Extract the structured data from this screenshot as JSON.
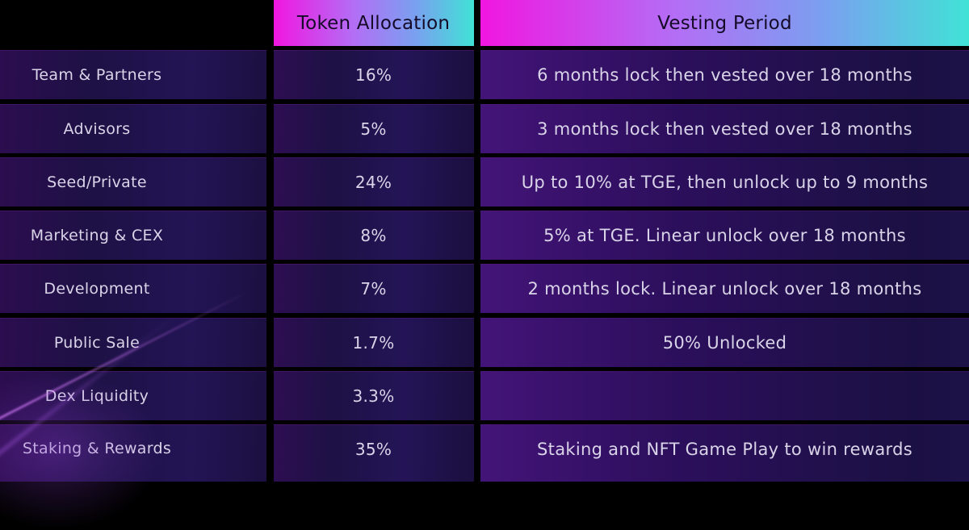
{
  "table": {
    "header": {
      "category": "",
      "allocation": "Token Allocation",
      "vesting": "Vesting Period"
    },
    "rows": [
      {
        "category": "Team & Partners",
        "allocation": "16%",
        "vesting": "6 months lock then vested over 18 months"
      },
      {
        "category": "Advisors",
        "allocation": "5%",
        "vesting": "3 months lock then vested over 18 months"
      },
      {
        "category": "Seed/Private",
        "allocation": "24%",
        "vesting": "Up to 10% at TGE, then unlock up to 9 months"
      },
      {
        "category": "Marketing & CEX",
        "allocation": "8%",
        "vesting": "5% at TGE. Linear unlock over 18 months"
      },
      {
        "category": "Development",
        "allocation": "7%",
        "vesting": "2 months lock. Linear unlock over 18 months"
      },
      {
        "category": "Public Sale",
        "allocation": "1.7%",
        "vesting": "50% Unlocked"
      },
      {
        "category": "Dex Liquidity",
        "allocation": "3.3%",
        "vesting": ""
      },
      {
        "category": "Staking & Rewards",
        "allocation": "35%",
        "vesting": "Staking and NFT Game Play to win rewards"
      }
    ]
  },
  "colors": {
    "background": "#000000",
    "header_gradient_start": "#f116e0",
    "header_gradient_mid1": "#b36ef5",
    "header_gradient_mid2": "#7b9ff0",
    "header_gradient_end": "#40e2d6",
    "header_text": "#150b28",
    "cell_text": "#d9d4e8",
    "row_bg": "#1d1145",
    "row_bg_purple_edge": "#2c0d4f",
    "vesting_bg_left": "#431478",
    "vesting_bg_right": "#1b1043"
  },
  "chart_data": {
    "type": "table",
    "title": "Token Allocation and Vesting Period",
    "columns": [
      "",
      "Token Allocation",
      "Vesting Period"
    ],
    "rows": [
      [
        "Team & Partners",
        "16%",
        "6 months lock then vested over 18 months"
      ],
      [
        "Advisors",
        "5%",
        "3 months lock then vested over 18 months"
      ],
      [
        "Seed/Private",
        "24%",
        "Up to 10% at TGE, then unlock up to 9 months"
      ],
      [
        "Marketing & CEX",
        "8%",
        "5% at TGE. Linear unlock over 18 months"
      ],
      [
        "Development",
        "7%",
        "2 months lock. Linear unlock over 18 months"
      ],
      [
        "Public Sale",
        "1.7%",
        "50% Unlocked"
      ],
      [
        "Dex Liquidity",
        "3.3%",
        ""
      ],
      [
        "Staking & Rewards",
        "35%",
        "Staking and NFT Game Play to win rewards"
      ]
    ],
    "allocation_values_percent": [
      16,
      5,
      24,
      8,
      7,
      1.7,
      3.3,
      35
    ]
  }
}
